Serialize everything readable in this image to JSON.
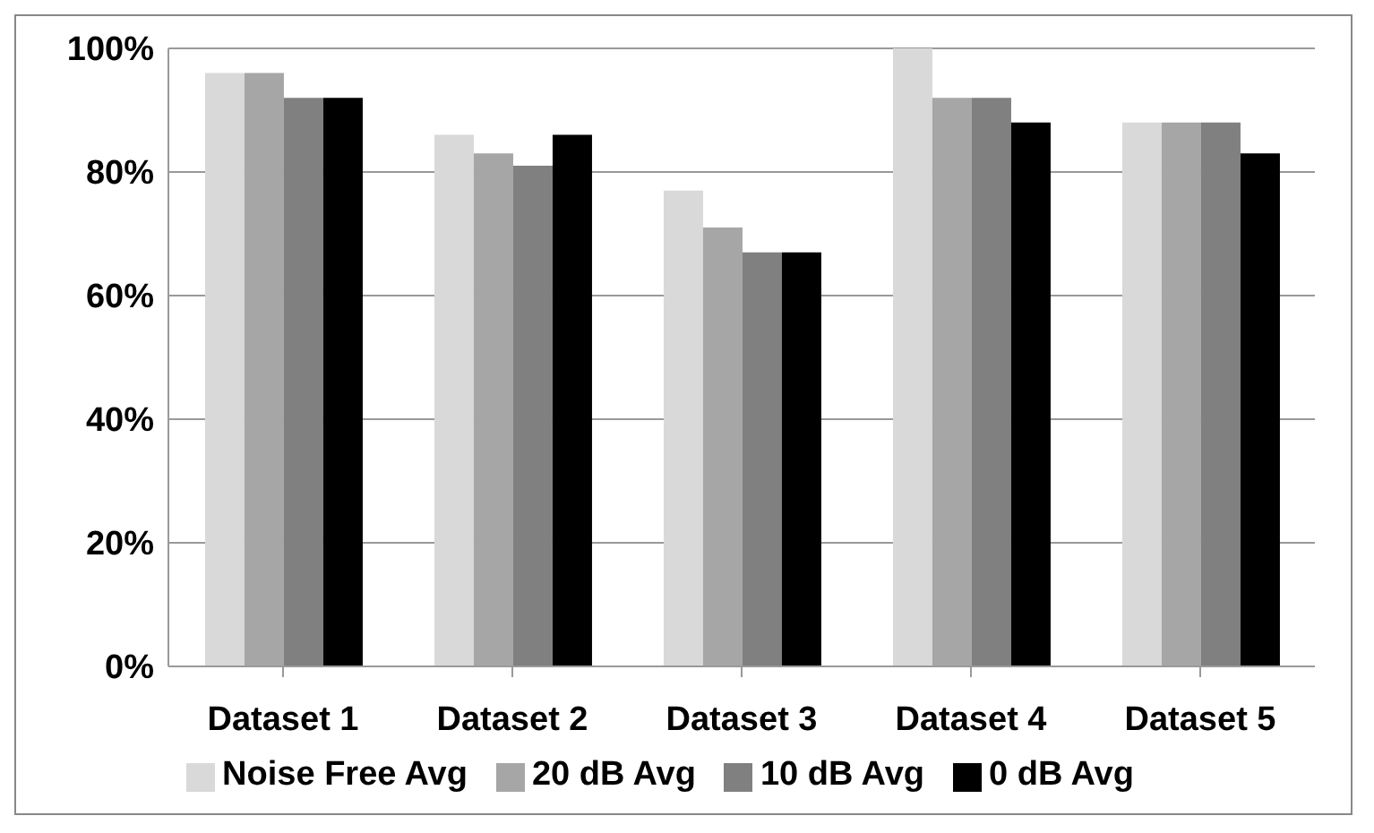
{
  "chart_data": {
    "type": "bar",
    "categories": [
      "Dataset 1",
      "Dataset 2",
      "Dataset 3",
      "Dataset 4",
      "Dataset 5"
    ],
    "series": [
      {
        "name": "Noise Free Avg",
        "color": "#d9d9d9",
        "values": [
          96,
          86,
          77,
          100,
          88
        ]
      },
      {
        "name": "20 dB Avg",
        "color": "#a6a6a6",
        "values": [
          96,
          83,
          71,
          92,
          88
        ]
      },
      {
        "name": "10 dB Avg",
        "color": "#808080",
        "values": [
          92,
          81,
          67,
          92,
          88
        ]
      },
      {
        "name": "0 dB Avg",
        "color": "#000000",
        "values": [
          92,
          86,
          67,
          88,
          83
        ]
      }
    ],
    "ylim": [
      0,
      100
    ],
    "yticks": [
      {
        "value": 0,
        "label": "0%"
      },
      {
        "value": 20,
        "label": "20%"
      },
      {
        "value": 40,
        "label": "40%"
      },
      {
        "value": 60,
        "label": "60%"
      },
      {
        "value": 80,
        "label": "80%"
      },
      {
        "value": 100,
        "label": "100%"
      }
    ],
    "grid": "y",
    "legend": "bottom"
  }
}
